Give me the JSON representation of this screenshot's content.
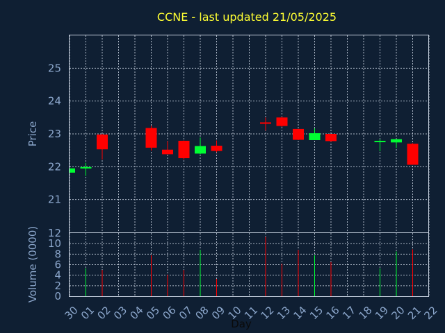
{
  "chart_data": {
    "type": "candlestick",
    "title": "CCNE - last updated 21/05/2025",
    "xlabel": "Day",
    "colors": {
      "background": "#0f1f33",
      "up": "#00ff33",
      "down": "#ff0000",
      "title": "#ffff33",
      "axis_text": "#8ca7cc",
      "grid": "#c8d2e0"
    },
    "grid": true,
    "x_ticks": [
      "30",
      "01",
      "02",
      "03",
      "04",
      "05",
      "06",
      "07",
      "08",
      "09",
      "10",
      "11",
      "12",
      "13",
      "14",
      "15",
      "16",
      "17",
      "18",
      "19",
      "20",
      "21",
      "22"
    ],
    "price": {
      "ylabel": "Price",
      "ylim": [
        20.0,
        26.0
      ],
      "yticks": [
        21,
        22,
        23,
        24,
        25
      ],
      "candles": [
        {
          "x": "30",
          "open": 21.82,
          "high": 21.95,
          "low": 21.8,
          "close": 21.95
        },
        {
          "x": "01",
          "open": 21.96,
          "high": 22.12,
          "low": 21.72,
          "close": 21.99
        },
        {
          "x": "02",
          "open": 22.98,
          "high": 23.0,
          "low": 22.22,
          "close": 22.53
        },
        {
          "x": "05",
          "open": 23.18,
          "high": 23.25,
          "low": 22.49,
          "close": 22.58
        },
        {
          "x": "06",
          "open": 22.52,
          "high": 22.78,
          "low": 22.38,
          "close": 22.38
        },
        {
          "x": "07",
          "open": 22.79,
          "high": 22.8,
          "low": 22.22,
          "close": 22.26
        },
        {
          "x": "08",
          "open": 22.4,
          "high": 22.89,
          "low": 22.38,
          "close": 22.63
        },
        {
          "x": "09",
          "open": 22.64,
          "high": 22.8,
          "low": 22.44,
          "close": 22.48
        },
        {
          "x": "12",
          "open": 23.35,
          "high": 23.5,
          "low": 23.1,
          "close": 23.33
        },
        {
          "x": "13",
          "open": 23.5,
          "high": 23.53,
          "low": 23.21,
          "close": 23.24
        },
        {
          "x": "14",
          "open": 23.15,
          "high": 23.15,
          "low": 22.81,
          "close": 22.82
        },
        {
          "x": "15",
          "open": 22.81,
          "high": 23.17,
          "low": 22.81,
          "close": 23.02
        },
        {
          "x": "16",
          "open": 23.0,
          "high": 23.0,
          "low": 22.76,
          "close": 22.78
        },
        {
          "x": "19",
          "open": 22.76,
          "high": 22.84,
          "low": 22.47,
          "close": 22.79
        },
        {
          "x": "20",
          "open": 22.74,
          "high": 22.84,
          "low": 22.57,
          "close": 22.84
        },
        {
          "x": "21",
          "open": 22.7,
          "high": 22.72,
          "low": 22.06,
          "close": 22.06
        }
      ]
    },
    "volume": {
      "ylabel": "Volume (0000)",
      "ylim": [
        0,
        12
      ],
      "yticks": [
        0,
        2,
        4,
        6,
        8,
        10,
        12
      ],
      "bars": [
        {
          "x": "01",
          "value": 5.3,
          "dir": "up"
        },
        {
          "x": "02",
          "value": 5.0,
          "dir": "down"
        },
        {
          "x": "05",
          "value": 7.8,
          "dir": "down"
        },
        {
          "x": "06",
          "value": 4.1,
          "dir": "down"
        },
        {
          "x": "07",
          "value": 5.0,
          "dir": "down"
        },
        {
          "x": "08",
          "value": 8.8,
          "dir": "up"
        },
        {
          "x": "09",
          "value": 3.3,
          "dir": "down"
        },
        {
          "x": "12",
          "value": 11.3,
          "dir": "down"
        },
        {
          "x": "13",
          "value": 6.2,
          "dir": "down"
        },
        {
          "x": "14",
          "value": 8.8,
          "dir": "down"
        },
        {
          "x": "15",
          "value": 7.8,
          "dir": "up"
        },
        {
          "x": "16",
          "value": 6.5,
          "dir": "down"
        },
        {
          "x": "19",
          "value": 5.3,
          "dir": "up"
        },
        {
          "x": "20",
          "value": 8.5,
          "dir": "up"
        },
        {
          "x": "21",
          "value": 8.9,
          "dir": "down"
        }
      ]
    }
  }
}
